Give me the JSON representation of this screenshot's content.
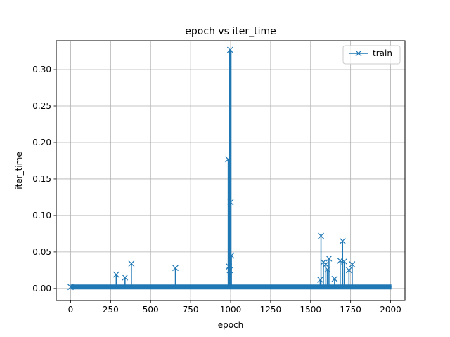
{
  "chart_data": {
    "type": "line",
    "title": "epoch vs iter_time",
    "xlabel": "epoch",
    "ylabel": "iter_time",
    "xlim": [
      -90,
      2090
    ],
    "ylim": [
      -0.0165,
      0.3395
    ],
    "xticks": [
      0,
      250,
      500,
      750,
      1000,
      1250,
      1500,
      1750,
      2000
    ],
    "xtick_labels": [
      "0",
      "250",
      "500",
      "750",
      "1000",
      "1250",
      "1500",
      "1750",
      "2000"
    ],
    "yticks": [
      0.0,
      0.05,
      0.1,
      0.15,
      0.2,
      0.25,
      0.3
    ],
    "ytick_labels": [
      "0.00",
      "0.05",
      "0.10",
      "0.15",
      "0.20",
      "0.25",
      "0.30"
    ],
    "grid": true,
    "legend_position": "top-right",
    "baseline_value": 0.002,
    "series": [
      {
        "name": "train",
        "color": "#1f77b4",
        "marker": "x",
        "x": [
          0,
          285,
          340,
          380,
          655,
          985,
          990,
          995,
          997,
          1000,
          1005,
          1560,
          1565,
          1580,
          1595,
          1605,
          1615,
          1650,
          1685,
          1700,
          1710,
          1740,
          1760
        ],
        "y": [
          0.002,
          0.019,
          0.015,
          0.034,
          0.028,
          0.177,
          0.03,
          0.025,
          0.327,
          0.118,
          0.045,
          0.012,
          0.072,
          0.036,
          0.033,
          0.026,
          0.041,
          0.013,
          0.038,
          0.065,
          0.037,
          0.025,
          0.033
        ]
      }
    ]
  }
}
